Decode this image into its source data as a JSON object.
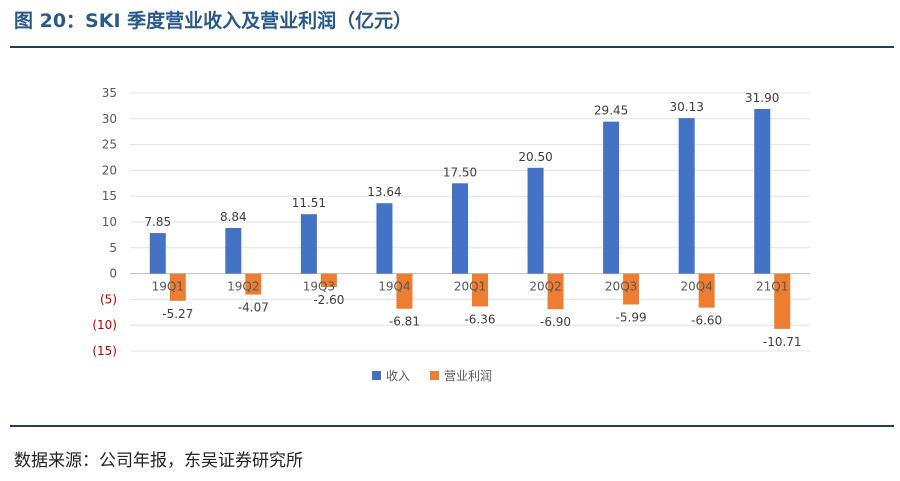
{
  "figure": {
    "title": "图 20：SKI 季度营业收入及营业利润（亿元）",
    "source": "数据来源：公司年报，东吴证券研究所"
  },
  "chart_data": {
    "type": "bar",
    "categories": [
      "19Q1",
      "19Q2",
      "19Q3",
      "19Q4",
      "20Q1",
      "20Q2",
      "20Q3",
      "20Q4",
      "21Q1"
    ],
    "series": [
      {
        "name": "收入",
        "color": "#4472c4",
        "values": [
          7.85,
          8.84,
          11.51,
          13.64,
          17.5,
          20.5,
          29.45,
          30.13,
          31.9
        ],
        "labels": [
          "7.85",
          "8.84",
          "11.51",
          "13.64",
          "17.50",
          "20.50",
          "29.45",
          "30.13",
          "31.90"
        ]
      },
      {
        "name": "营业利润",
        "color": "#ed7d31",
        "values": [
          -5.27,
          -4.07,
          -2.6,
          -6.81,
          -6.36,
          -6.9,
          -5.99,
          -6.6,
          -10.71
        ],
        "labels": [
          "-5.27",
          "-4.07",
          "-2.60",
          "-6.81",
          "-6.36",
          "-6.90",
          "-5.99",
          "-6.60",
          "-10.71"
        ]
      }
    ],
    "y_ticks": [
      35,
      30,
      25,
      20,
      15,
      10,
      5,
      0,
      -5,
      -10,
      -15
    ],
    "y_tick_labels": [
      "35",
      "30",
      "25",
      "20",
      "15",
      "10",
      "5",
      "0",
      "(5)",
      "(10)",
      "(15)"
    ],
    "negative_tick_color": "#c00000",
    "ylim": [
      -15,
      35
    ],
    "grid": true,
    "legend_position": "bottom"
  }
}
